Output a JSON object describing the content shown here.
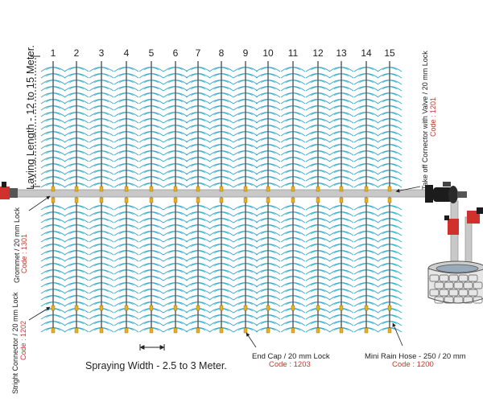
{
  "hose_numbers": [
    "1",
    "2",
    "3",
    "4",
    "5",
    "6",
    "7",
    "8",
    "9",
    "10",
    "11",
    "12",
    "13",
    "14",
    "15"
  ],
  "labels": {
    "laying_length": "Laying Length - 12 to 15 Meter.",
    "spraying_width": "Spraying Width - 2.5 to 3 Meter.",
    "take_off_connector": "Take off Cornector with Valve / 20 mm Lock",
    "take_off_code": "Code : 1201",
    "grommet": "Grommet / 20 mm Lock",
    "grommet_code": "Code : 1301",
    "straight_connector": "Stright Connector / 20 mm Lock",
    "straight_code": "Code : 1202",
    "end_cap": "End Cap / 20 mm Lock",
    "end_cap_code": "Code : 1203",
    "mini_rain_hose": "Mini Rain Hose - 250 / 20 mm",
    "mini_rain_hose_code": "Code : 1200"
  },
  "colors": {
    "spray": "#3aa7c9",
    "main_pipe": "#c8c8c8",
    "hose": "#555555",
    "fitting": "#e8b020",
    "valve_red": "#d0312d",
    "pump_black": "#1c1c1c",
    "well_stone": "#8a8a8a",
    "code_text": "#c0392b"
  },
  "icons": {
    "pump": "water-pump-icon",
    "well": "stone-well-icon",
    "valve": "valve-icon"
  }
}
